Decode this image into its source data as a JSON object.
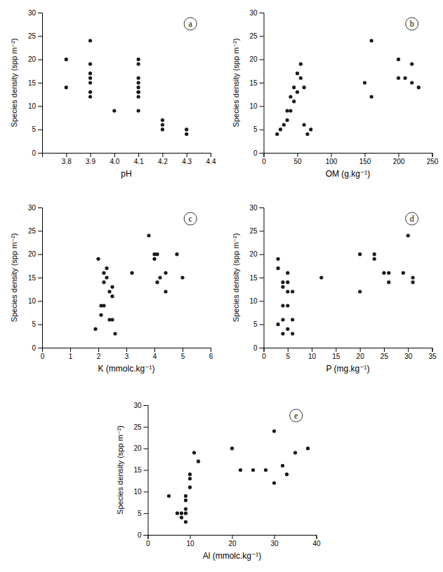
{
  "chart_data": [
    {
      "type": "scatter",
      "annotation": "a",
      "xlabel": "pH",
      "ylabel": "Species density (spp m⁻²)",
      "color": "#1a1a1a",
      "xlim": [
        3.7,
        4.4
      ],
      "xticks": [
        3.8,
        3.9,
        {
          "value": 4.0,
          "label": "4.0"
        },
        4.1,
        4.2,
        4.3,
        4.4
      ],
      "ylim": [
        0,
        30
      ],
      "yticks": [
        0,
        5,
        10,
        15,
        20,
        25,
        30
      ],
      "x": [
        3.8,
        3.8,
        3.9,
        3.9,
        3.9,
        3.9,
        3.9,
        3.9,
        3.9,
        4.0,
        4.1,
        4.1,
        4.1,
        4.1,
        4.1,
        4.1,
        4.1,
        4.1,
        4.1,
        4.2,
        4.2,
        4.2,
        4.3,
        4.3
      ],
      "values": [
        20,
        14,
        24,
        19,
        17,
        16,
        15,
        13,
        12,
        9,
        20,
        19,
        16,
        15,
        14,
        13,
        13,
        12,
        9,
        7,
        6,
        5,
        5,
        4
      ]
    },
    {
      "type": "scatter",
      "annotation": "b",
      "xlabel": "OM (g.kg⁻¹)",
      "ylabel": "Species density (spp m⁻²)",
      "color": "#1a1a1a",
      "xlim": [
        0,
        250
      ],
      "xticks": [
        0,
        50,
        100,
        150,
        200,
        250
      ],
      "ylim": [
        0,
        30
      ],
      "yticks": [
        0,
        5,
        10,
        15,
        20,
        25,
        30
      ],
      "x": [
        20,
        25,
        30,
        35,
        35,
        40,
        40,
        45,
        45,
        50,
        50,
        55,
        55,
        60,
        60,
        65,
        70,
        150,
        160,
        160,
        200,
        200,
        210,
        220,
        220,
        230
      ],
      "values": [
        4,
        5,
        6,
        7,
        9,
        9,
        12,
        11,
        14,
        13,
        17,
        16,
        19,
        6,
        14,
        4,
        5,
        15,
        24,
        12,
        20,
        16,
        16,
        19,
        15,
        14
      ]
    },
    {
      "type": "scatter",
      "annotation": "c",
      "xlabel": "K (mmolc.kg⁻¹)",
      "ylabel": "Species density (spp m⁻²)",
      "color": "#1a1a1a",
      "xlim": [
        0.0,
        6.0
      ],
      "xticks": [
        0,
        1,
        2,
        3,
        4,
        5,
        6
      ],
      "ylim": [
        0,
        30
      ],
      "yticks": [
        0,
        5,
        10,
        15,
        20,
        25,
        30
      ],
      "x": [
        1.9,
        2.0,
        2.1,
        2.1,
        2.2,
        2.2,
        2.2,
        2.3,
        2.3,
        2.4,
        2.4,
        2.5,
        2.5,
        2.5,
        2.6,
        3.2,
        3.8,
        4.0,
        4.0,
        4.1,
        4.1,
        4.2,
        4.4,
        4.4,
        4.8,
        5.0
      ],
      "values": [
        4,
        19,
        7,
        9,
        16,
        14,
        9,
        17,
        15,
        12,
        6,
        13,
        11,
        6,
        3,
        16,
        24,
        20,
        19,
        14,
        20,
        15,
        16,
        12,
        20,
        15
      ]
    },
    {
      "type": "scatter",
      "annotation": "d",
      "xlabel": "P (mg.kg⁻¹)",
      "ylabel": "Species density (spp m⁻²)",
      "color": "#1a1a1a",
      "xlim": [
        0,
        35
      ],
      "xticks": [
        0,
        5,
        10,
        15,
        20,
        25,
        30,
        35
      ],
      "ylim": [
        0,
        30
      ],
      "yticks": [
        0,
        5,
        10,
        15,
        20,
        25,
        30
      ],
      "x": [
        3,
        3,
        3,
        4,
        4,
        4,
        4,
        4,
        5,
        5,
        5,
        5,
        5,
        6,
        6,
        6,
        12,
        20,
        20,
        23,
        23,
        25,
        26,
        26,
        29,
        30,
        31,
        31
      ],
      "values": [
        5,
        17,
        19,
        14,
        13,
        9,
        6,
        3,
        16,
        14,
        12,
        9,
        4,
        12,
        6,
        3,
        15,
        20,
        12,
        20,
        19,
        16,
        16,
        14,
        16,
        24,
        14,
        15
      ]
    },
    {
      "type": "scatter",
      "annotation": "e",
      "xlabel": "Al (mmolc.kg⁻¹)",
      "ylabel": "Species density (spp m⁻²)",
      "color": "#1a1a1a",
      "xlim": [
        0,
        40
      ],
      "xticks": [
        0,
        10,
        20,
        30,
        40
      ],
      "ylim": [
        0,
        30
      ],
      "yticks": [
        0,
        5,
        10,
        15,
        20,
        25,
        30
      ],
      "x": [
        5,
        7,
        8,
        8,
        9,
        9,
        9,
        9,
        9,
        10,
        10,
        10,
        11,
        12,
        20,
        22,
        25,
        28,
        30,
        30,
        32,
        33,
        35,
        38
      ],
      "values": [
        9,
        5,
        5,
        4,
        9,
        8,
        6,
        5,
        3,
        14,
        13,
        11,
        19,
        17,
        20,
        15,
        15,
        15,
        24,
        12,
        16,
        14,
        19,
        20
      ]
    }
  ]
}
